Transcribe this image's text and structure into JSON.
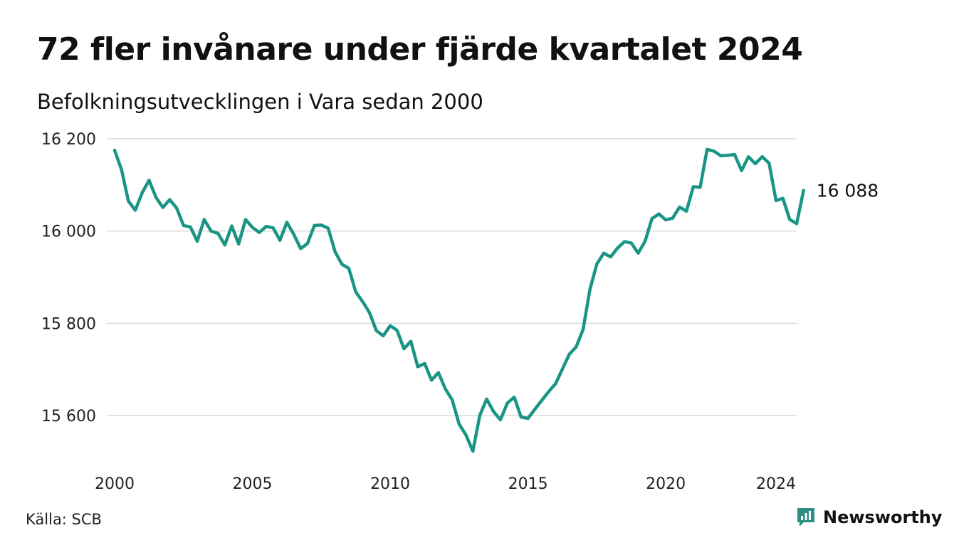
{
  "title": "72 fler invånare under fjärde kvartalet 2024",
  "subtitle": "Befolkningsutvecklingen i Vara sedan 2000",
  "source": "Källa: SCB",
  "brand": {
    "name": "Newsworthy",
    "icon": "newsworthy-logo-icon",
    "color": "#2b8f84"
  },
  "chart_data": {
    "type": "line",
    "x_start_year": 2000,
    "quarters_per_year": 4,
    "ylim": [
      15500,
      16200
    ],
    "xlim": [
      2000,
      2024.75
    ],
    "yticks": [
      {
        "value": 15600,
        "label": "15 600"
      },
      {
        "value": 15800,
        "label": "15 800"
      },
      {
        "value": 16000,
        "label": "16 000"
      },
      {
        "value": 16200,
        "label": "16 200"
      }
    ],
    "xticks": [
      {
        "value": 2000,
        "label": "2000"
      },
      {
        "value": 2005,
        "label": "2005"
      },
      {
        "value": 2010,
        "label": "2010"
      },
      {
        "value": 2015,
        "label": "2015"
      },
      {
        "value": 2020,
        "label": "2020"
      },
      {
        "value": 2024,
        "label": "2024"
      }
    ],
    "grid": true,
    "line_color": "#1a9585",
    "end_label": "16 088",
    "series": [
      {
        "values": [
          16175,
          16133,
          16065,
          16045,
          16083,
          16110,
          16073,
          16051,
          16068,
          16050,
          16012,
          16009,
          15978,
          16025,
          16000,
          15995,
          15970,
          16011,
          15972,
          16025,
          16008,
          15997,
          16010,
          16007,
          15980,
          16019,
          15993,
          15962,
          15973,
          16012,
          16013,
          16006,
          15955,
          15928,
          15919,
          15868,
          15847,
          15823,
          15784,
          15773,
          15795,
          15785,
          15745,
          15761,
          15706,
          15713,
          15677,
          15693,
          15658,
          15634,
          15582,
          15558,
          15523,
          15600,
          15636,
          15609,
          15591,
          15627,
          15640,
          15597,
          15594,
          15614,
          15633,
          15652,
          15669,
          15701,
          15733,
          15749,
          15787,
          15874,
          15929,
          15952,
          15944,
          15963,
          15977,
          15974,
          15952,
          15978,
          16027,
          16037,
          16024,
          16028,
          16052,
          16043,
          16096,
          16095,
          16177,
          16173,
          16163,
          16164,
          16166,
          16131,
          16161,
          16146,
          16161,
          16147,
          16066,
          16071,
          16025,
          16016,
          16088
        ]
      }
    ]
  }
}
